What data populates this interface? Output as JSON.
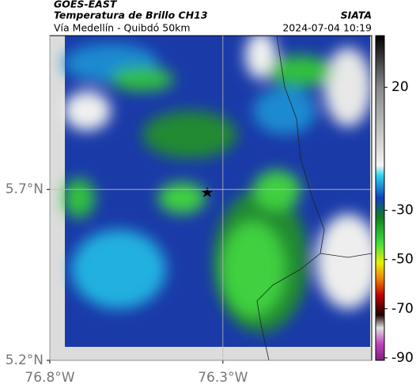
{
  "chart_data": {
    "type": "map",
    "title": "GOES-EAST",
    "subtitle": "Temperatura de Brillo CH13",
    "region": "Vía Medellín - Quibdó 50km",
    "source": "SIATA",
    "datetime": "2024-07-04 10:19",
    "xlim": [
      -76.8,
      -75.87
    ],
    "ylim": [
      5.2,
      6.15
    ],
    "xticks": [
      {
        "value": -76.8,
        "label": "76.8°W"
      },
      {
        "value": -76.3,
        "label": "76.3°W"
      }
    ],
    "yticks": [
      {
        "value": 5.2,
        "label": "5.2°N"
      },
      {
        "value": 5.7,
        "label": "5.7°N"
      }
    ],
    "grid": true,
    "colorbar": {
      "clim": [
        -91,
        41
      ],
      "ticks": [
        20,
        -30,
        -50,
        -70,
        -90
      ]
    }
  }
}
